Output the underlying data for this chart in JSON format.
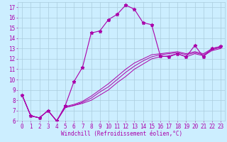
{
  "xlabel": "Windchill (Refroidissement éolien,°C)",
  "bg_color": "#cceeff",
  "grid_color": "#aaccdd",
  "line_color": "#aa00aa",
  "xlim": [
    -0.5,
    23.5
  ],
  "ylim": [
    6,
    17.5
  ],
  "xticks": [
    0,
    1,
    2,
    3,
    4,
    5,
    6,
    7,
    8,
    9,
    10,
    11,
    12,
    13,
    14,
    15,
    16,
    17,
    18,
    19,
    20,
    21,
    22,
    23
  ],
  "yticks": [
    6,
    7,
    8,
    9,
    10,
    11,
    12,
    13,
    14,
    15,
    16,
    17
  ],
  "series": [
    [
      8.5,
      6.5,
      6.3,
      7.0,
      6.0,
      7.5,
      9.8,
      11.2,
      14.5,
      14.7,
      15.8,
      16.3,
      17.2,
      16.8,
      15.5,
      15.3,
      12.3,
      12.2,
      12.5,
      12.2,
      13.3,
      12.2,
      13.0,
      13.2
    ],
    [
      8.5,
      6.5,
      6.3,
      7.0,
      6.0,
      7.3,
      7.5,
      7.7,
      8.0,
      8.5,
      9.0,
      9.7,
      10.3,
      11.0,
      11.5,
      12.0,
      12.2,
      12.3,
      12.5,
      12.2,
      12.5,
      12.3,
      12.8,
      13.0
    ],
    [
      8.5,
      6.5,
      6.3,
      7.0,
      6.0,
      7.3,
      7.5,
      7.8,
      8.2,
      8.8,
      9.3,
      10.0,
      10.7,
      11.3,
      11.8,
      12.2,
      12.4,
      12.5,
      12.6,
      12.4,
      12.6,
      12.4,
      12.9,
      13.1
    ],
    [
      8.5,
      6.5,
      6.3,
      7.0,
      6.0,
      7.4,
      7.6,
      7.9,
      8.4,
      9.0,
      9.6,
      10.3,
      11.0,
      11.6,
      12.0,
      12.4,
      12.5,
      12.6,
      12.7,
      12.5,
      12.7,
      12.5,
      13.0,
      13.2
    ]
  ],
  "tick_fontsize": 5.5,
  "xlabel_fontsize": 5.5
}
